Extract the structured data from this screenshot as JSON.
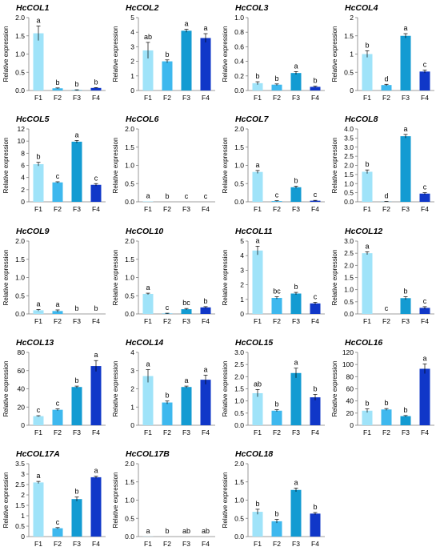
{
  "figure": {
    "colors": {
      "F1": "#9fe3f9",
      "F2": "#3eb8ee",
      "F3": "#139bd2",
      "F4": "#1037c8",
      "axis": "#7f7f7f",
      "text": "#000000",
      "error_bar": "#000000"
    }
  },
  "chart_data": [
    {
      "type": "bar",
      "title": "HcCOL1",
      "ylabel": "Relative expression",
      "categories": [
        "F1",
        "F2",
        "F3",
        "F4"
      ],
      "values": [
        1.57,
        0.06,
        0.01,
        0.07
      ],
      "errors": [
        0.2,
        0.01,
        0.01,
        0.01
      ],
      "letters": [
        "a",
        "b",
        "b",
        "b"
      ],
      "ylim": [
        0,
        2.0
      ],
      "yticks": [
        "0.0",
        "0.5",
        "1.0",
        "1.5",
        "2.0"
      ],
      "grid": false
    },
    {
      "type": "bar",
      "title": "HcCOL2",
      "ylabel": "Relative expression",
      "categories": [
        "F1",
        "F2",
        "F3",
        "F4"
      ],
      "values": [
        2.75,
        2.0,
        4.1,
        3.6
      ],
      "errors": [
        0.55,
        0.1,
        0.1,
        0.3
      ],
      "letters": [
        "ab",
        "b",
        "a",
        "a"
      ],
      "ylim": [
        0,
        5
      ],
      "yticks": [
        "0",
        "1",
        "2",
        "3",
        "4",
        "5"
      ],
      "grid": false
    },
    {
      "type": "bar",
      "title": "HcCOL3",
      "ylabel": "Relative expression",
      "categories": [
        "F1",
        "F2",
        "F3",
        "F4"
      ],
      "values": [
        0.1,
        0.08,
        0.24,
        0.05
      ],
      "errors": [
        0.02,
        0.01,
        0.02,
        0.01
      ],
      "letters": [
        "b",
        "b",
        "a",
        "b"
      ],
      "ylim": [
        0,
        1.0
      ],
      "yticks": [
        "0.0",
        "0.2",
        "0.4",
        "0.6",
        "0.8",
        "1.0"
      ],
      "grid": false
    },
    {
      "type": "bar",
      "title": "HcCOL4",
      "ylabel": "Relative expression",
      "categories": [
        "F1",
        "F2",
        "F3",
        "F4"
      ],
      "values": [
        1.0,
        0.15,
        1.5,
        0.52
      ],
      "errors": [
        0.09,
        0.02,
        0.06,
        0.04
      ],
      "letters": [
        "b",
        "d",
        "a",
        "c"
      ],
      "ylim": [
        0,
        2.0
      ],
      "yticks": [
        "0",
        "0.5",
        "1",
        "1.5",
        "2"
      ],
      "grid": false
    },
    {
      "type": "bar",
      "title": "HcCOL5",
      "ylabel": "Relative expression",
      "categories": [
        "F1",
        "F2",
        "F3",
        "F4"
      ],
      "values": [
        6.2,
        3.2,
        9.9,
        2.8
      ],
      "errors": [
        0.3,
        0.1,
        0.2,
        0.2
      ],
      "letters": [
        "b",
        "c",
        "a",
        "c"
      ],
      "ylim": [
        0,
        12
      ],
      "yticks": [
        "0",
        "2",
        "4",
        "6",
        "8",
        "10",
        "12"
      ],
      "grid": false
    },
    {
      "type": "bar",
      "title": "HcCOL6",
      "ylabel": "Relative expression",
      "categories": [
        "F1",
        "F2",
        "F3",
        "F4"
      ],
      "values": [
        0.01,
        0.0,
        0.0,
        0.0
      ],
      "errors": [
        0.0,
        0.0,
        0.0,
        0.0
      ],
      "letters": [
        "a",
        "b",
        "c",
        "c"
      ],
      "ylim": [
        0,
        2.0
      ],
      "yticks": [
        "0.0",
        "0.5",
        "1.0",
        "1.5",
        "2.0"
      ],
      "grid": false
    },
    {
      "type": "bar",
      "title": "HcCOL7",
      "ylabel": "Relative expression",
      "categories": [
        "F1",
        "F2",
        "F3",
        "F4"
      ],
      "values": [
        0.82,
        0.02,
        0.4,
        0.03
      ],
      "errors": [
        0.04,
        0.01,
        0.03,
        0.01
      ],
      "letters": [
        "a",
        "c",
        "b",
        "c"
      ],
      "ylim": [
        0,
        2.0
      ],
      "yticks": [
        "0.0",
        "0.5",
        "1.0",
        "1.5",
        "2.0"
      ],
      "grid": false
    },
    {
      "type": "bar",
      "title": "HcCOL8",
      "ylabel": "Relative expression",
      "categories": [
        "F1",
        "F2",
        "F3",
        "F4"
      ],
      "values": [
        1.65,
        0.01,
        3.6,
        0.45
      ],
      "errors": [
        0.1,
        0.01,
        0.1,
        0.05
      ],
      "letters": [
        "b",
        "d",
        "a",
        "c"
      ],
      "ylim": [
        0,
        4.0
      ],
      "yticks": [
        "0.0",
        "0.5",
        "1.0",
        "1.5",
        "2.0",
        "2.5",
        "3.0",
        "3.5",
        "4.0"
      ],
      "grid": false
    },
    {
      "type": "bar",
      "title": "HcCOL9",
      "ylabel": "Relative expression",
      "categories": [
        "F1",
        "F2",
        "F3",
        "F4"
      ],
      "values": [
        0.1,
        0.08,
        0.0,
        0.0
      ],
      "errors": [
        0.02,
        0.03,
        0.0,
        0.0
      ],
      "letters": [
        "a",
        "a",
        "b",
        "b"
      ],
      "ylim": [
        0,
        2.0
      ],
      "yticks": [
        "0.0",
        "0.5",
        "1.0",
        "1.5",
        "2.0"
      ],
      "grid": false
    },
    {
      "type": "bar",
      "title": "HcCOL10",
      "ylabel": "Relative expression",
      "categories": [
        "F1",
        "F2",
        "F3",
        "F4"
      ],
      "values": [
        0.55,
        0.01,
        0.13,
        0.18
      ],
      "errors": [
        0.02,
        0.01,
        0.02,
        0.02
      ],
      "letters": [
        "a",
        "c",
        "bc",
        "b"
      ],
      "ylim": [
        0,
        2.0
      ],
      "yticks": [
        "0.0",
        "0.5",
        "1.0",
        "1.5",
        "2.0"
      ],
      "grid": false
    },
    {
      "type": "bar",
      "title": "HcCOL11",
      "ylabel": "Relative expression",
      "categories": [
        "F1",
        "F2",
        "F3",
        "F4"
      ],
      "values": [
        4.35,
        1.1,
        1.4,
        0.72
      ],
      "errors": [
        0.3,
        0.08,
        0.08,
        0.08
      ],
      "letters": [
        "a",
        "bc",
        "b",
        "c"
      ],
      "ylim": [
        0,
        5
      ],
      "yticks": [
        "0",
        "1",
        "2",
        "3",
        "4",
        "5"
      ],
      "grid": false
    },
    {
      "type": "bar",
      "title": "HcCOL12",
      "ylabel": "Relative expression",
      "categories": [
        "F1",
        "F2",
        "F3",
        "F4"
      ],
      "values": [
        2.5,
        0.0,
        0.65,
        0.25
      ],
      "errors": [
        0.06,
        0.0,
        0.06,
        0.05
      ],
      "letters": [
        "a",
        "c",
        "b",
        "c"
      ],
      "ylim": [
        0,
        3.0
      ],
      "yticks": [
        "0.0",
        "0.5",
        "1.0",
        "1.5",
        "2.0",
        "2.5",
        "3.0"
      ],
      "grid": false
    },
    {
      "type": "bar",
      "title": "HcCOL13",
      "ylabel": "Relative expression",
      "categories": [
        "F1",
        "F2",
        "F3",
        "F4"
      ],
      "values": [
        10,
        17,
        42,
        65
      ],
      "errors": [
        0.5,
        1.0,
        1.0,
        6
      ],
      "letters": [
        "c",
        "c",
        "b",
        "a"
      ],
      "ylim": [
        0,
        80
      ],
      "yticks": [
        "0",
        "20",
        "40",
        "60",
        "80"
      ],
      "grid": false
    },
    {
      "type": "bar",
      "title": "HcCOL14",
      "ylabel": "Relative expression",
      "categories": [
        "F1",
        "F2",
        "F3",
        "F4"
      ],
      "values": [
        2.7,
        1.25,
        2.1,
        2.5
      ],
      "errors": [
        0.35,
        0.08,
        0.05,
        0.25
      ],
      "letters": [
        "a",
        "b",
        "a",
        "a"
      ],
      "ylim": [
        0,
        4
      ],
      "yticks": [
        "0",
        "1",
        "2",
        "3",
        "4"
      ],
      "grid": false
    },
    {
      "type": "bar",
      "title": "HcCOL15",
      "ylabel": "Relative expression",
      "categories": [
        "F1",
        "F2",
        "F3",
        "F4"
      ],
      "values": [
        1.32,
        0.6,
        2.15,
        1.15
      ],
      "errors": [
        0.15,
        0.04,
        0.2,
        0.12
      ],
      "letters": [
        "ab",
        "b",
        "a",
        "b"
      ],
      "ylim": [
        0,
        3.0
      ],
      "yticks": [
        "0.0",
        "0.5",
        "1.0",
        "1.5",
        "2.0",
        "2.5",
        "3.0"
      ],
      "grid": false
    },
    {
      "type": "bar",
      "title": "HcCOL16",
      "ylabel": "Relative expression",
      "categories": [
        "F1",
        "F2",
        "F3",
        "F4"
      ],
      "values": [
        24,
        26,
        15,
        93
      ],
      "errors": [
        3,
        1.5,
        1.0,
        8
      ],
      "letters": [
        "b",
        "b",
        "b",
        "a"
      ],
      "ylim": [
        0,
        120
      ],
      "yticks": [
        "0",
        "20",
        "40",
        "60",
        "80",
        "100",
        "120"
      ],
      "grid": false
    },
    {
      "type": "bar",
      "title": "HcCOL17A",
      "ylabel": "Relative expression",
      "categories": [
        "F1",
        "F2",
        "F3",
        "F4"
      ],
      "values": [
        2.6,
        0.4,
        1.8,
        2.85
      ],
      "errors": [
        0.05,
        0.03,
        0.1,
        0.05
      ],
      "letters": [
        "a",
        "c",
        "b",
        "a"
      ],
      "ylim": [
        0,
        3.5
      ],
      "yticks": [
        "0",
        "0.5",
        "1",
        "1.5",
        "2",
        "2.5",
        "3",
        "3.5"
      ],
      "grid": false
    },
    {
      "type": "bar",
      "title": "HcCOL17B",
      "ylabel": "Relative expression",
      "categories": [
        "F1",
        "F2",
        "F3",
        "F4"
      ],
      "values": [
        0.005,
        0.0,
        0.0,
        0.0
      ],
      "errors": [
        0.0,
        0.0,
        0.0,
        0.0
      ],
      "letters": [
        "a",
        "b",
        "ab",
        "ab"
      ],
      "ylim": [
        0,
        2.0
      ],
      "yticks": [
        "0.0",
        "0.5",
        "1.0",
        "1.5",
        "2.0"
      ],
      "grid": false
    },
    {
      "type": "bar",
      "title": "HcCOL18",
      "ylabel": "Relative expression",
      "categories": [
        "F1",
        "F2",
        "F3",
        "F4"
      ],
      "values": [
        0.68,
        0.42,
        1.28,
        0.63
      ],
      "errors": [
        0.07,
        0.05,
        0.05,
        0.03
      ],
      "letters": [
        "b",
        "b",
        "a",
        "b"
      ],
      "ylim": [
        0,
        2.0
      ],
      "yticks": [
        "0.0",
        "0.5",
        "1.0",
        "1.5",
        "2.0"
      ],
      "grid": false
    }
  ]
}
